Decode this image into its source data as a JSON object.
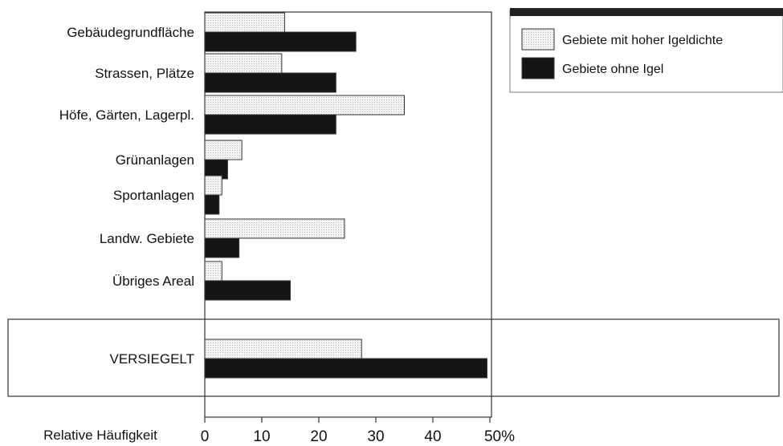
{
  "colors": {
    "series_light_fill": "#f3f3f3",
    "series_light_dots": "#b8b8b8",
    "series_dark_fill": "#141414",
    "frame": "#333333",
    "legend_bar": "#222222"
  },
  "chart_data": {
    "type": "bar",
    "orientation": "horizontal",
    "categories": [
      "Gebäudegrundfläche",
      "Strassen, Plätze",
      "Höfe, Gärten, Lagerpl.",
      "Grünanlagen",
      "Sportanlagen",
      "Landw. Gebiete",
      "Übriges Areal",
      "VERSIEGELT"
    ],
    "series": [
      {
        "name": "Gebiete mit hoher Igeldichte",
        "values": [
          14,
          13.5,
          35,
          6.5,
          3,
          24.5,
          3,
          27.5
        ]
      },
      {
        "name": "Gebiete ohne Igel",
        "values": [
          26.5,
          23,
          23,
          4,
          2.5,
          6,
          15,
          49.5
        ]
      }
    ],
    "xlabel": "Relative Häufigkeit",
    "xticks": [
      "0",
      "10",
      "20",
      "30",
      "40",
      "50%"
    ],
    "xlim": [
      0,
      50
    ],
    "grid": false,
    "legend_position": "top-right",
    "highlighted_category": "VERSIEGELT"
  }
}
